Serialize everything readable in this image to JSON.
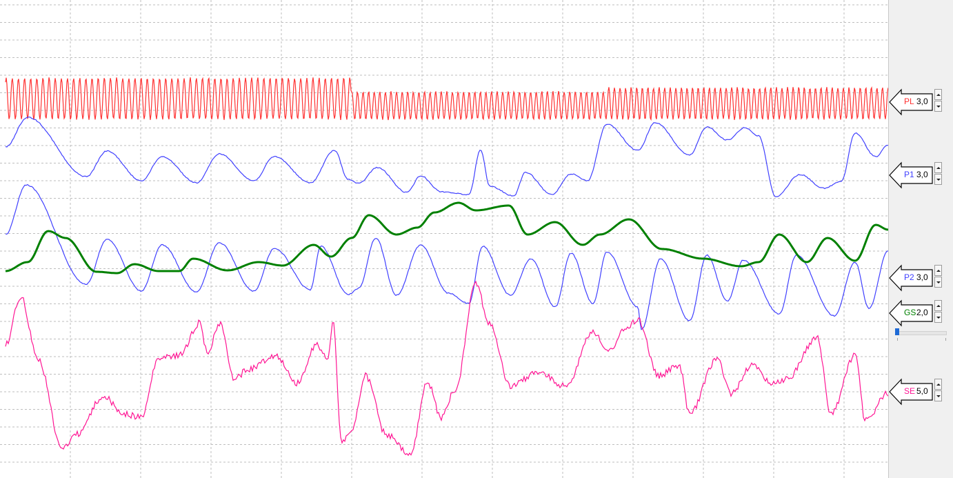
{
  "channels": [
    {
      "id": "PL",
      "label": "PL",
      "scale": "3,0",
      "color": "#ff3030"
    },
    {
      "id": "P1",
      "label": "P1",
      "scale": "3,0",
      "color": "#4040ff"
    },
    {
      "id": "P2",
      "label": "P2",
      "scale": "3,0",
      "color": "#4040ff"
    },
    {
      "id": "GS",
      "label": "GS",
      "scale": "2,0",
      "color": "#008000"
    },
    {
      "id": "SE",
      "label": "SE",
      "scale": "5,0",
      "color": "#ff1493"
    }
  ],
  "grid": {
    "major_divisions": 13,
    "minor_rows": 27,
    "line_color": "#bdbdbd"
  },
  "gs_slider": {
    "value": 0.0
  },
  "icons": {
    "spin_up": "triangle-up-icon",
    "spin_down": "triangle-down-icon",
    "marker": "left-arrow-marker-icon"
  }
}
